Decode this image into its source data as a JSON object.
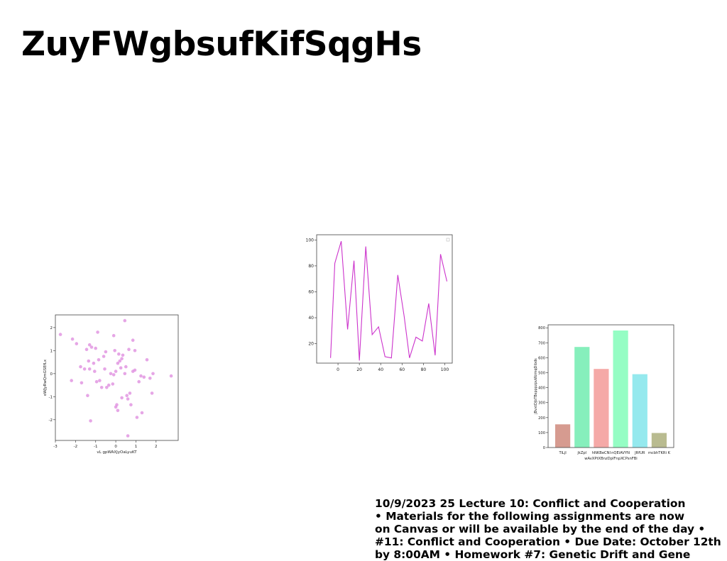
{
  "slide": {
    "title": "ZuyFWgbsufKifSqgHs",
    "notes": "10/9/2023 25 Lecture 10: Conflict and Cooperation\n• Materials for the following assignments are now\non Canvas or will be available by the end of the day •\n#11: Conflict and Cooperation • Due Date: October 12th\nby 8:00AM • Homework #7: Genetic Drift and Gene"
  },
  "chart_data": [
    {
      "type": "scatter",
      "xlabel": "vL gpWAXJyOaLyuKT",
      "ylabel": "oWJyRwQmGSEfLx",
      "xlim": [
        -3,
        3.1
      ],
      "ylim": [
        -2.9,
        2.55
      ],
      "xticks": [
        "-3",
        "-2",
        "-1",
        "0",
        "1",
        "2"
      ],
      "yticks": [
        "-2",
        "-1",
        "0",
        "1",
        "2"
      ],
      "color": "#dd88dd",
      "x": [
        -2.75,
        -2.15,
        -1.95,
        -1.75,
        -1.55,
        -1.45,
        -1.4,
        -1.35,
        -1.3,
        -1.2,
        -1.1,
        -1.05,
        -0.95,
        -0.85,
        -0.8,
        -0.7,
        -0.6,
        -0.5,
        -0.35,
        -0.25,
        -0.15,
        -0.1,
        0.0,
        0.05,
        0.1,
        0.15,
        0.25,
        0.3,
        0.35,
        0.45,
        0.55,
        0.6,
        0.65,
        0.75,
        0.85,
        0.95,
        1.05,
        1.15,
        1.25,
        1.4,
        1.55,
        1.8,
        2.75,
        -2.2,
        -1.7,
        -1.3,
        -1.0,
        -0.9,
        -0.55,
        -0.1,
        0.0,
        0.3,
        0.5,
        0.7,
        0.95,
        1.3,
        1.85,
        0.1,
        -1.25,
        0.6,
        0.85,
        0.2,
        -0.05,
        0.45,
        1.7,
        -0.45
      ],
      "y": [
        1.7,
        1.5,
        1.3,
        0.3,
        0.2,
        1.05,
        -0.95,
        0.55,
        0.2,
        1.15,
        0.45,
        0.1,
        -0.35,
        0.6,
        -0.3,
        -0.6,
        0.75,
        0.95,
        -0.5,
        0.0,
        -0.45,
        1.65,
        -1.45,
        -1.35,
        0.45,
        0.85,
        0.25,
        -1.05,
        0.8,
        0.0,
        -0.95,
        -1.1,
        1.05,
        -1.35,
        0.1,
        1.0,
        -1.9,
        -0.35,
        -0.1,
        -0.15,
        0.6,
        -0.85,
        -0.1,
        -0.3,
        -0.4,
        1.25,
        1.1,
        1.8,
        0.2,
        -0.05,
        0.1,
        0.65,
        0.3,
        -0.85,
        0.15,
        -1.7,
        0.0,
        -1.6,
        -2.05,
        -2.7,
        1.45,
        0.55,
        1.0,
        2.3,
        -0.2,
        -0.6
      ]
    },
    {
      "type": "line",
      "x": [
        -7,
        -3,
        3,
        9,
        15,
        20,
        26,
        32,
        38,
        44,
        50,
        56,
        62,
        67,
        73,
        79,
        85,
        91,
        96,
        102
      ],
      "y": [
        9,
        82,
        99,
        31,
        84,
        7,
        95,
        27,
        33,
        10,
        9,
        73,
        41,
        9,
        25,
        22,
        51,
        11,
        89,
        68
      ],
      "xlim": [
        -20,
        107
      ],
      "ylim": [
        5,
        104
      ],
      "xticks": [
        "0",
        "20",
        "40",
        "60",
        "80",
        "100"
      ],
      "yticks": [
        "20",
        "40",
        "60",
        "80",
        "100"
      ],
      "color": "#cc33cc"
    },
    {
      "type": "bar",
      "categories": [
        "TiLjI",
        "jkZpl",
        "hNKBeCNI",
        "nQEiAVYN",
        "JRfUR",
        "mcbhTKRi K"
      ],
      "values": [
        155,
        672,
        525,
        782,
        490,
        97
      ],
      "xlabel": "wAvXPtXBnzDplFnpXCPsnFBi",
      "ylabel": "jBvxtDjbTBspppzpuWzmqDibds",
      "ylim": [
        0,
        820
      ],
      "yticks": [
        "0",
        "100",
        "200",
        "300",
        "400",
        "500",
        "600",
        "700",
        "800"
      ],
      "colors": [
        "#d4968a",
        "#7feeb8",
        "#f4a4a2",
        "#8ffdc1",
        "#8fe8ed",
        "#b5b78a"
      ]
    }
  ]
}
